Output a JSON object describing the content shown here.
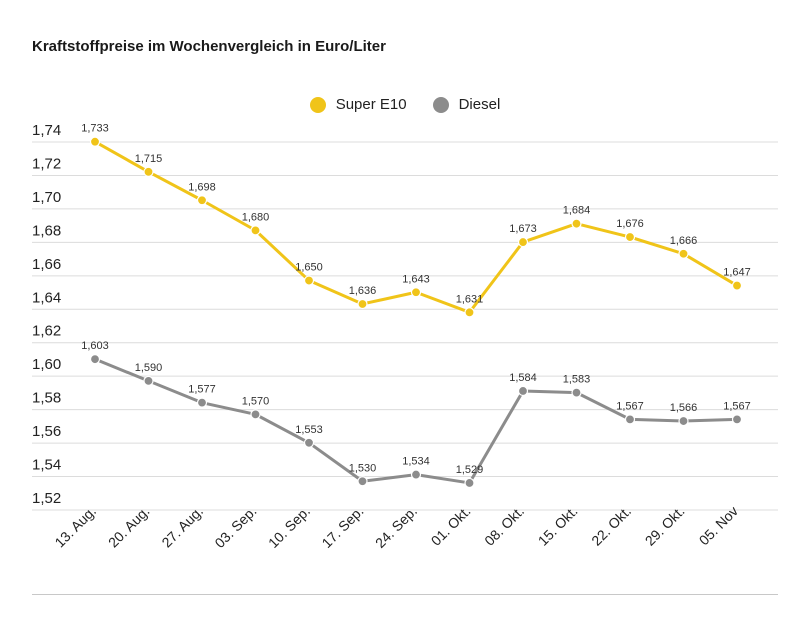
{
  "colors": {
    "e10": "#f0c419",
    "diesel": "#8c8c8c",
    "grid": "#dcdcdc"
  },
  "chart_data": {
    "type": "line",
    "title": "Kraftstoffpreise im Wochenvergleich in Euro/Liter",
    "categories": [
      "13. Aug.",
      "20. Aug.",
      "27. Aug.",
      "03. Sep.",
      "10. Sep.",
      "17. Sep.",
      "24. Sep.",
      "01. Okt.",
      "08. Okt.",
      "15. Okt.",
      "22. Okt.",
      "29. Okt.",
      "05. Nov"
    ],
    "y_ticks": [
      "1,74",
      "1,72",
      "1,70",
      "1,68",
      "1,66",
      "1,64",
      "1,62",
      "1,60",
      "1,58",
      "1,56",
      "1,54",
      "1,52"
    ],
    "y_tick_values": [
      1.74,
      1.72,
      1.7,
      1.68,
      1.66,
      1.64,
      1.62,
      1.6,
      1.58,
      1.56,
      1.54,
      1.52
    ],
    "ylim": [
      1.52,
      1.74
    ],
    "grid": true,
    "legend_position": "top-center",
    "series": [
      {
        "key": "e10",
        "name": "Super E10",
        "values": [
          1.733,
          1.715,
          1.698,
          1.68,
          1.65,
          1.636,
          1.643,
          1.631,
          1.673,
          1.684,
          1.676,
          1.666,
          1.647
        ],
        "labels": [
          "1,733",
          "1,715",
          "1,698",
          "1,680",
          "1,650",
          "1,636",
          "1,643",
          "1,631",
          "1,673",
          "1,684",
          "1,676",
          "1,666",
          "1,647"
        ]
      },
      {
        "key": "diesel",
        "name": "Diesel",
        "values": [
          1.603,
          1.59,
          1.577,
          1.57,
          1.553,
          1.53,
          1.534,
          1.529,
          1.584,
          1.583,
          1.567,
          1.566,
          1.567
        ],
        "labels": [
          "1,603",
          "1,590",
          "1,577",
          "1,570",
          "1,553",
          "1,530",
          "1,534",
          "1,529",
          "1,584",
          "1,583",
          "1,567",
          "1,566",
          "1,567"
        ]
      }
    ]
  }
}
